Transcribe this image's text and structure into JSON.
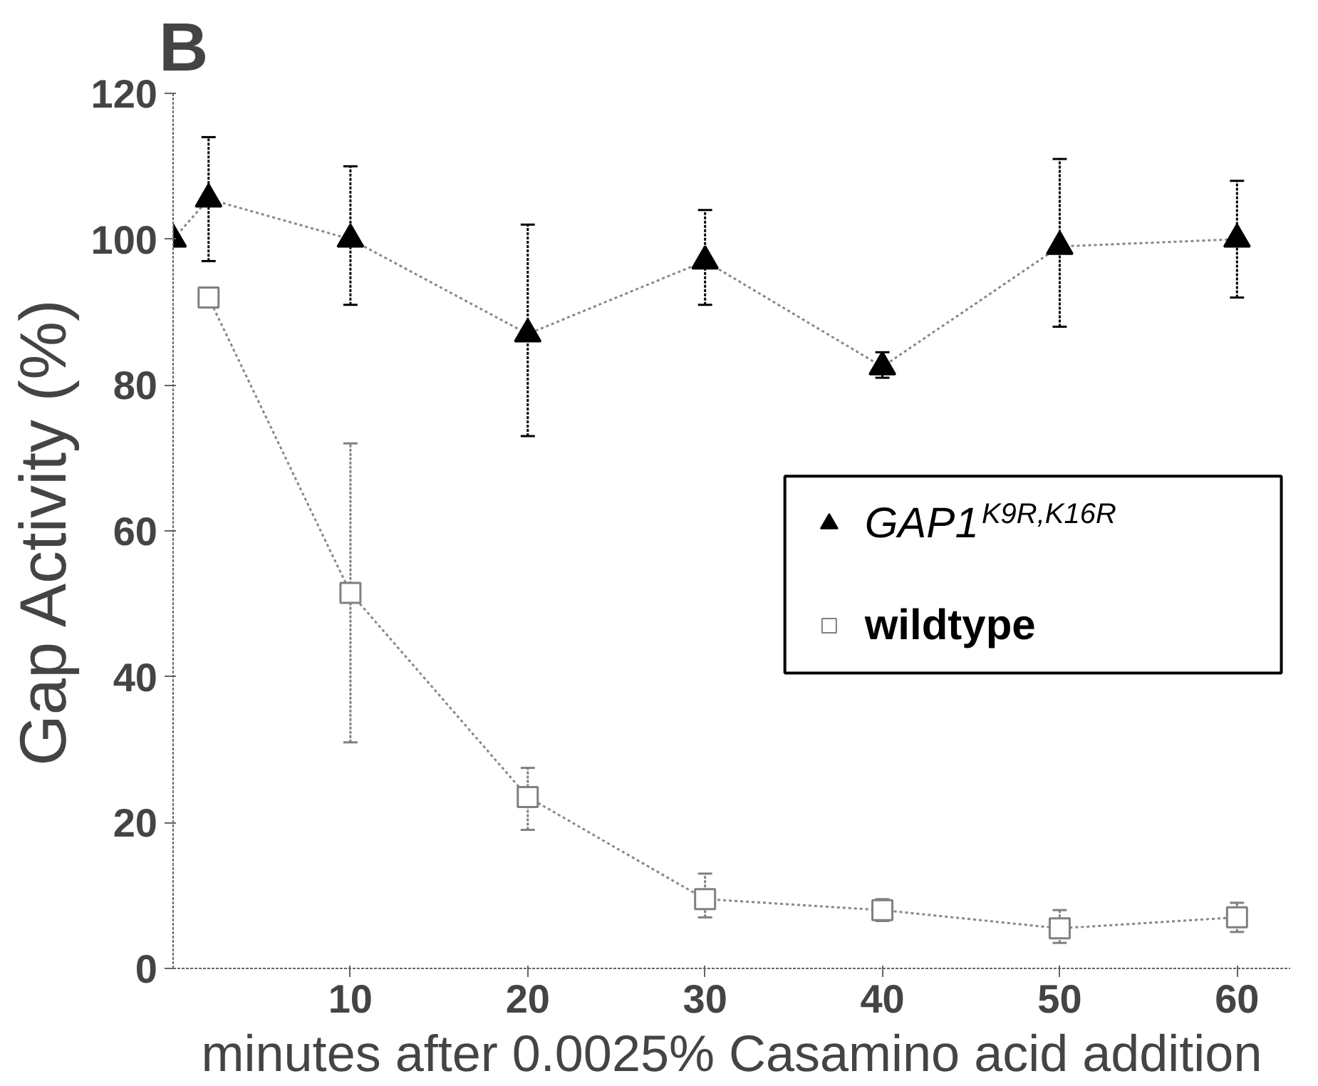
{
  "chart_data": {
    "type": "line",
    "title": "B",
    "xlabel": "minutes after 0.0025% Casamino acid addition",
    "ylabel": "Gap Activity (%)",
    "x": [
      0,
      2,
      10,
      20,
      30,
      40,
      50,
      60
    ],
    "series": [
      {
        "name": "GAP1$^{K9R,K16R}$",
        "color": "#000000",
        "marker": "triangle",
        "values": [
          100,
          105.5,
          100,
          87,
          97,
          82.5,
          99,
          100
        ],
        "errors": [
          null,
          [
            97,
            114
          ],
          [
            91,
            110
          ],
          [
            73,
            102
          ],
          [
            91,
            104
          ],
          [
            81,
            84.5
          ],
          [
            88,
            111
          ],
          [
            92,
            108
          ]
        ]
      },
      {
        "name": "wildtype",
        "color": "#808080",
        "marker": "square",
        "values": [
          null,
          92,
          51.5,
          23.5,
          9.5,
          8,
          5.5,
          7
        ],
        "errors": [
          null,
          null,
          [
            31,
            72
          ],
          [
            19,
            27.5
          ],
          [
            7,
            13
          ],
          [
            6.5,
            9.5
          ],
          [
            3.5,
            8
          ],
          [
            5,
            9
          ]
        ]
      }
    ],
    "xlim": [
      0,
      63
    ],
    "ylim": [
      0,
      120
    ],
    "xticks": [
      10,
      20,
      30,
      40,
      50,
      60
    ],
    "yticks": [
      0,
      20,
      40,
      60,
      80,
      100,
      120
    ],
    "grid": false,
    "legend": "right",
    "line_style": "dotted"
  }
}
